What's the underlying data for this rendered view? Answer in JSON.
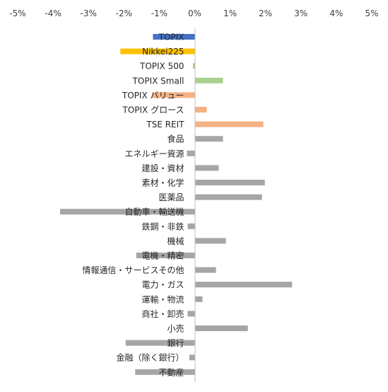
{
  "chart_data": {
    "type": "bar",
    "orientation": "horizontal",
    "x_ticks": [
      "-5%",
      "-4%",
      "-3%",
      "-2%",
      "-1%",
      "0%",
      "1%",
      "2%",
      "3%",
      "4%",
      "5%"
    ],
    "xlim": [
      -5,
      5
    ],
    "x_axis_position": "top",
    "grid": false,
    "categories": [
      "TOPIX",
      "Nikkei225",
      "TOPIX 500",
      "TOPIX Small",
      "TOPIX バリュー",
      "TOPIX グロース",
      "TSE REIT",
      "食品",
      "エネルギー資源",
      "建設・資材",
      "素材・化学",
      "医薬品",
      "自動車・輸送機",
      "鉄鋼・非鉄",
      "機械",
      "電機・精密",
      "情報通信・サービスその他",
      "電力・ガス",
      "運輸・物流",
      "商社・卸売",
      "小売",
      "銀行",
      "金融（除く銀行）",
      "不動産"
    ],
    "values": [
      -1.18,
      -2.1,
      -0.05,
      0.8,
      -1.2,
      0.34,
      1.94,
      0.8,
      -0.22,
      0.68,
      1.98,
      1.9,
      -3.8,
      -0.2,
      0.88,
      -1.65,
      0.6,
      2.75,
      0.22,
      -0.2,
      1.5,
      -1.95,
      -0.15,
      -1.68
    ],
    "colors": [
      "#4472C4",
      "#FFC000",
      "#A9D18E",
      "#A9D18E",
      "#F4B183",
      "#F4B183",
      "#F4B183",
      "#A6A6A6",
      "#A6A6A6",
      "#A6A6A6",
      "#A6A6A6",
      "#A6A6A6",
      "#A6A6A6",
      "#A6A6A6",
      "#A6A6A6",
      "#A6A6A6",
      "#A6A6A6",
      "#A6A6A6",
      "#A6A6A6",
      "#A6A6A6",
      "#A6A6A6",
      "#A6A6A6",
      "#A6A6A6",
      "#A6A6A6"
    ]
  }
}
